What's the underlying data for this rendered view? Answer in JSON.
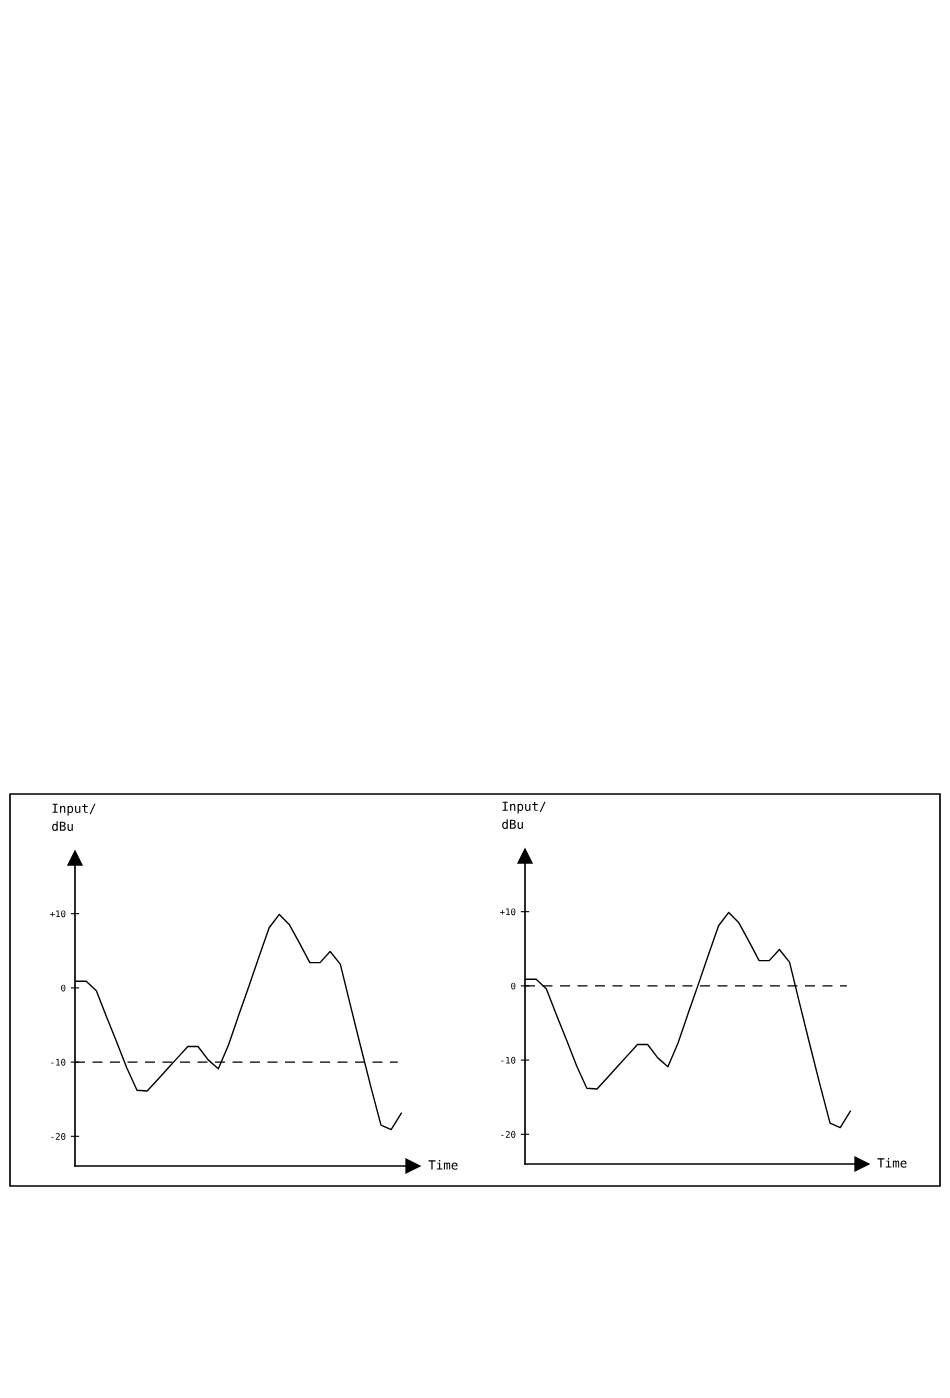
{
  "chart_data": [
    {
      "type": "line",
      "ylabel": "Input/\ndBu",
      "xlabel": "Time",
      "tick_labels": "y",
      "grid": false,
      "line_style": "solid",
      "marker": "none",
      "categories": [
        null,
        null,
        null,
        null,
        null,
        null,
        null,
        null,
        null,
        null,
        null,
        null,
        null,
        null,
        null,
        null,
        null,
        null,
        null,
        null,
        null,
        null,
        null,
        null,
        null,
        null,
        null,
        null,
        null,
        null,
        null,
        null,
        null
      ],
      "series": [
        {
          "color": "#000000",
          "values": [
            0.9,
            0.9,
            -0.4,
            -3.9,
            -7.3,
            -10.8,
            -13.8,
            -13.9,
            -12.4,
            -10.9,
            -9.4,
            -7.9,
            -7.9,
            -9.7,
            -10.9,
            -7.7,
            -3.7,
            0.2,
            4.2,
            8.1,
            9.9,
            8.5,
            6.0,
            3.4,
            3.4,
            4.9,
            3.2,
            -2.4,
            -7.9,
            -13.3,
            -18.5,
            -19.1,
            -16.9
          ]
        }
      ],
      "ylim": [
        -24,
        17.5
      ],
      "yticks": [
        {
          "value": 10,
          "label": "+10"
        },
        0,
        -10,
        -20
      ],
      "ref_lines": [
        {
          "axis": "y",
          "value": -10,
          "color": "#000000",
          "line_style": "dashed"
        }
      ]
    },
    {
      "type": "line",
      "ylabel": "Input/\ndBu",
      "xlabel": "Time",
      "tick_labels": "y",
      "grid": false,
      "line_style": "solid",
      "marker": "none",
      "categories": [
        null,
        null,
        null,
        null,
        null,
        null,
        null,
        null,
        null,
        null,
        null,
        null,
        null,
        null,
        null,
        null,
        null,
        null,
        null,
        null,
        null,
        null,
        null,
        null,
        null,
        null,
        null,
        null,
        null,
        null,
        null,
        null,
        null
      ],
      "series": [
        {
          "color": "#000000",
          "values": [
            0.9,
            0.9,
            -0.4,
            -3.9,
            -7.3,
            -10.8,
            -13.8,
            -13.9,
            -12.4,
            -10.9,
            -9.4,
            -7.9,
            -7.9,
            -9.7,
            -10.9,
            -7.7,
            -3.7,
            0.2,
            4.2,
            8.1,
            9.9,
            8.5,
            6.0,
            3.4,
            3.4,
            4.9,
            3.2,
            -2.4,
            -7.9,
            -13.3,
            -18.5,
            -19.1,
            -16.9
          ]
        }
      ],
      "ylim": [
        -24,
        17.5
      ],
      "yticks": [
        {
          "value": 10,
          "label": "+10"
        },
        0,
        -10,
        -20
      ],
      "ref_lines": [
        {
          "axis": "y",
          "value": 0,
          "color": "#000000",
          "line_style": "dashed"
        }
      ]
    }
  ]
}
